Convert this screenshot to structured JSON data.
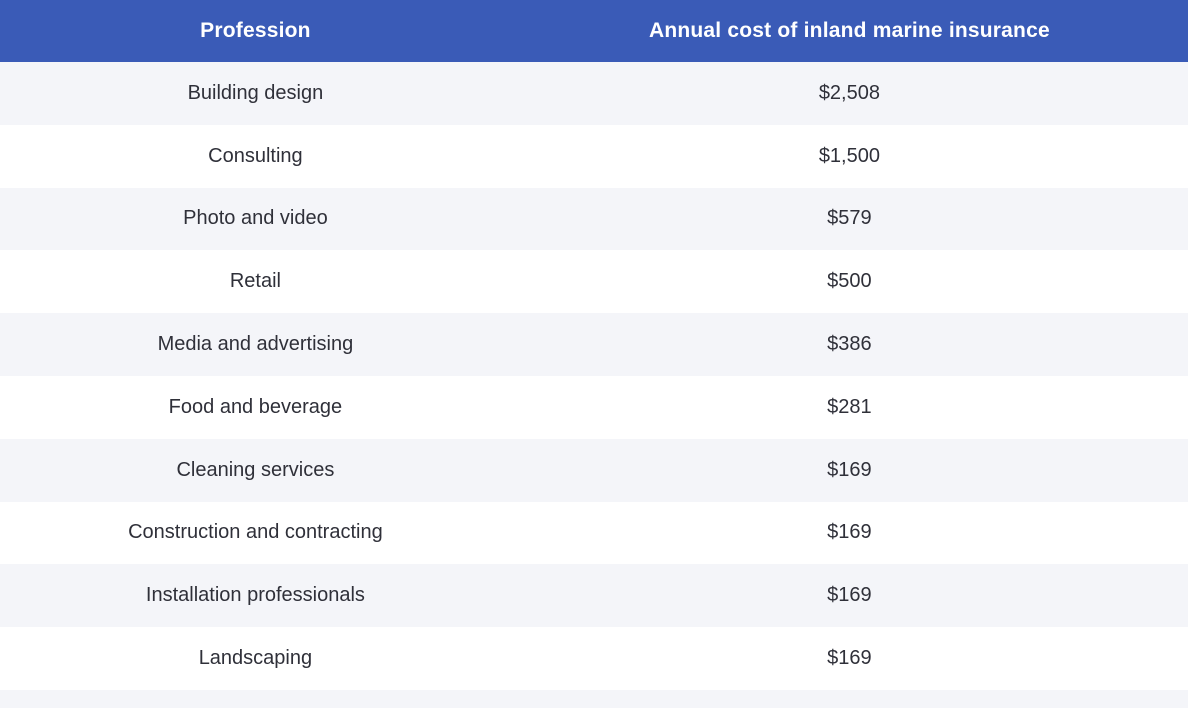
{
  "header": {
    "profession_label": "Profession",
    "cost_label": "Annual cost of inland marine insurance"
  },
  "rows": [
    {
      "profession": "Building design",
      "cost": "$2,508"
    },
    {
      "profession": "Consulting",
      "cost": "$1,500"
    },
    {
      "profession": "Photo and video",
      "cost": "$579"
    },
    {
      "profession": "Retail",
      "cost": "$500"
    },
    {
      "profession": "Media and advertising",
      "cost": "$386"
    },
    {
      "profession": "Food and beverage",
      "cost": "$281"
    },
    {
      "profession": "Cleaning services",
      "cost": "$169"
    },
    {
      "profession": "Construction and contracting",
      "cost": "$169"
    },
    {
      "profession": "Installation professionals",
      "cost": "$169"
    },
    {
      "profession": "Landscaping",
      "cost": "$169"
    }
  ],
  "colors": {
    "header_bg": "#3A5BB7",
    "header_text": "#FFFFFF",
    "row_alt_bg": "#F4F5F9",
    "row_bg": "#FFFFFF",
    "row_text": "#2F3039"
  },
  "chart_data": {
    "type": "table",
    "title": "Annual cost of inland marine insurance by profession",
    "columns": [
      "Profession",
      "Annual cost of inland marine insurance"
    ],
    "rows": [
      [
        "Building design",
        2508
      ],
      [
        "Consulting",
        1500
      ],
      [
        "Photo and video",
        579
      ],
      [
        "Retail",
        500
      ],
      [
        "Media and advertising",
        386
      ],
      [
        "Food and beverage",
        281
      ],
      [
        "Cleaning services",
        169
      ],
      [
        "Construction and contracting",
        169
      ],
      [
        "Installation professionals",
        169
      ],
      [
        "Landscaping",
        169
      ]
    ]
  }
}
